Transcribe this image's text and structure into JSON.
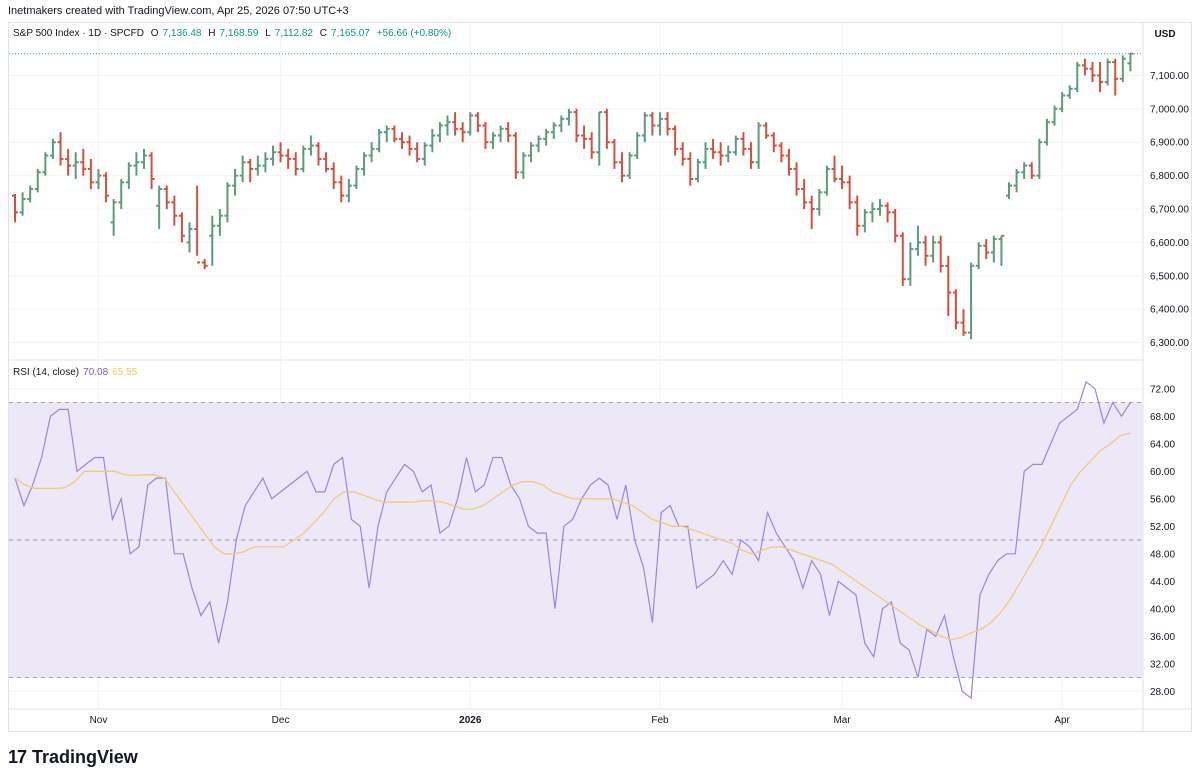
{
  "header": {
    "text": "Inetmakers created with TradingView.com, Apr 25, 2026 07:50 UTC+3"
  },
  "legend": {
    "symbol": "S&P 500 Index · 1D · SPCFD",
    "o_label": "O",
    "o_value": "7,136.48",
    "h_label": "H",
    "h_value": "7,168.59",
    "l_label": "L",
    "l_value": "7,112.82",
    "c_label": "C",
    "c_value": "7,165.07",
    "change": "+56.66 (+0.80%)"
  },
  "currency": "USD",
  "rsi_legend": {
    "name": "RSI (14, close)",
    "value": "70.08",
    "ma_value": "65.55"
  },
  "footer": {
    "logo_text": "TradingView",
    "logo_icon": "tradingview-logo-icon"
  },
  "colors": {
    "up": "#26a69a",
    "up_bar": "#5b9c7a",
    "down": "#d2513c",
    "rsi": "#9a86d6",
    "rsi_ma": "#f7c873",
    "band": "#ede8f8"
  },
  "chart_data": [
    {
      "type": "ohlc",
      "title": "S&P 500 Index · 1D · SPCFD",
      "ylim": [
        6260,
        7200
      ],
      "yticks": [
        "6,300.00",
        "6,400.00",
        "6,500.00",
        "6,600.00",
        "6,700.00",
        "6,800.00",
        "6,900.00",
        "7,000.00",
        "7,100.00"
      ],
      "ytick_values": [
        6300,
        6400,
        6500,
        6600,
        6700,
        6800,
        6900,
        7000,
        7100
      ],
      "xticks": [
        "Nov",
        "Dec",
        "2026",
        "Feb",
        "Mar",
        "Apr"
      ],
      "xtick_index": [
        11,
        35,
        60,
        85,
        109,
        138
      ],
      "bars": [
        [
          6740,
          6745,
          6660,
          6690
        ],
        [
          6690,
          6750,
          6680,
          6730
        ],
        [
          6730,
          6770,
          6720,
          6760
        ],
        [
          6760,
          6820,
          6750,
          6810
        ],
        [
          6810,
          6870,
          6800,
          6860
        ],
        [
          6860,
          6910,
          6850,
          6900
        ],
        [
          6900,
          6930,
          6830,
          6850
        ],
        [
          6850,
          6880,
          6800,
          6830
        ],
        [
          6830,
          6870,
          6790,
          6840
        ],
        [
          6840,
          6880,
          6800,
          6820
        ],
        [
          6820,
          6850,
          6760,
          6780
        ],
        [
          6780,
          6820,
          6760,
          6800
        ],
        [
          6800,
          6810,
          6720,
          6740
        ],
        [
          6660,
          6730,
          6620,
          6720
        ],
        [
          6720,
          6790,
          6700,
          6780
        ],
        [
          6780,
          6840,
          6760,
          6830
        ],
        [
          6830,
          6870,
          6800,
          6840
        ],
        [
          6840,
          6880,
          6820,
          6860
        ],
        [
          6860,
          6870,
          6760,
          6790
        ],
        [
          6710,
          6770,
          6640,
          6760
        ],
        [
          6760,
          6770,
          6700,
          6720
        ],
        [
          6720,
          6740,
          6650,
          6680
        ],
        [
          6680,
          6690,
          6600,
          6620
        ],
        [
          6600,
          6660,
          6570,
          6640
        ],
        [
          6640,
          6770,
          6560,
          6540
        ],
        [
          6540,
          6550,
          6520,
          6530
        ],
        [
          6620,
          6680,
          6530,
          6650
        ],
        [
          6650,
          6700,
          6620,
          6680
        ],
        [
          6680,
          6780,
          6660,
          6770
        ],
        [
          6770,
          6820,
          6740,
          6800
        ],
        [
          6800,
          6860,
          6780,
          6840
        ],
        [
          6840,
          6850,
          6780,
          6820
        ],
        [
          6820,
          6860,
          6800,
          6830
        ],
        [
          6830,
          6870,
          6810,
          6850
        ],
        [
          6850,
          6890,
          6830,
          6870
        ],
        [
          6870,
          6900,
          6840,
          6860
        ],
        [
          6860,
          6880,
          6820,
          6850
        ],
        [
          6850,
          6870,
          6800,
          6820
        ],
        [
          6820,
          6890,
          6810,
          6880
        ],
        [
          6880,
          6920,
          6860,
          6890
        ],
        [
          6890,
          6900,
          6830,
          6850
        ],
        [
          6850,
          6870,
          6810,
          6820
        ],
        [
          6820,
          6840,
          6760,
          6780
        ],
        [
          6780,
          6800,
          6720,
          6740
        ],
        [
          6740,
          6790,
          6720,
          6770
        ],
        [
          6770,
          6830,
          6760,
          6820
        ],
        [
          6820,
          6870,
          6800,
          6860
        ],
        [
          6860,
          6900,
          6840,
          6880
        ],
        [
          6880,
          6940,
          6870,
          6930
        ],
        [
          6930,
          6950,
          6900,
          6940
        ],
        [
          6940,
          6950,
          6900,
          6910
        ],
        [
          6910,
          6930,
          6880,
          6900
        ],
        [
          6900,
          6920,
          6860,
          6880
        ],
        [
          6880,
          6900,
          6840,
          6850
        ],
        [
          6850,
          6900,
          6830,
          6890
        ],
        [
          6890,
          6940,
          6870,
          6920
        ],
        [
          6920,
          6960,
          6900,
          6950
        ],
        [
          6950,
          6980,
          6920,
          6960
        ],
        [
          6960,
          6990,
          6920,
          6940
        ],
        [
          6940,
          6960,
          6900,
          6930
        ],
        [
          6930,
          6990,
          6920,
          6980
        ],
        [
          6980,
          6990,
          6930,
          6950
        ],
        [
          6950,
          6960,
          6880,
          6900
        ],
        [
          6900,
          6930,
          6880,
          6920
        ],
        [
          6920,
          6950,
          6900,
          6940
        ],
        [
          6940,
          6960,
          6900,
          6920
        ],
        [
          6920,
          6930,
          6790,
          6810
        ],
        [
          6810,
          6870,
          6790,
          6860
        ],
        [
          6860,
          6900,
          6840,
          6890
        ],
        [
          6890,
          6920,
          6870,
          6910
        ],
        [
          6910,
          6940,
          6890,
          6930
        ],
        [
          6930,
          6960,
          6910,
          6950
        ],
        [
          6950,
          6980,
          6930,
          6970
        ],
        [
          6970,
          7000,
          6950,
          6990
        ],
        [
          6990,
          7000,
          6900,
          6920
        ],
        [
          6920,
          6950,
          6880,
          6910
        ],
        [
          6910,
          6930,
          6850,
          6870
        ],
        [
          6870,
          6990,
          6830,
          6990
        ],
        [
          6990,
          7000,
          6880,
          6900
        ],
        [
          6900,
          6910,
          6820,
          6840
        ],
        [
          6840,
          6870,
          6780,
          6800
        ],
        [
          6800,
          6870,
          6790,
          6860
        ],
        [
          6860,
          6930,
          6850,
          6920
        ],
        [
          6920,
          6990,
          6900,
          6980
        ],
        [
          6980,
          6990,
          6920,
          6950
        ],
        [
          6950,
          6990,
          6920,
          6970
        ],
        [
          6970,
          6990,
          6920,
          6940
        ],
        [
          6940,
          6950,
          6860,
          6880
        ],
        [
          6880,
          6900,
          6830,
          6850
        ],
        [
          6850,
          6870,
          6770,
          6790
        ],
        [
          6790,
          6850,
          6780,
          6840
        ],
        [
          6840,
          6900,
          6820,
          6880
        ],
        [
          6880,
          6910,
          6850,
          6870
        ],
        [
          6870,
          6900,
          6830,
          6860
        ],
        [
          6860,
          6890,
          6840,
          6870
        ],
        [
          6870,
          6920,
          6860,
          6910
        ],
        [
          6910,
          6930,
          6860,
          6880
        ],
        [
          6880,
          6900,
          6820,
          6840
        ],
        [
          6840,
          6960,
          6820,
          6950
        ],
        [
          6950,
          6960,
          6910,
          6920
        ],
        [
          6920,
          6930,
          6870,
          6890
        ],
        [
          6890,
          6900,
          6840,
          6860
        ],
        [
          6860,
          6880,
          6800,
          6820
        ],
        [
          6820,
          6840,
          6740,
          6760
        ],
        [
          6760,
          6790,
          6700,
          6720
        ],
        [
          6720,
          6740,
          6640,
          6700
        ],
        [
          6700,
          6760,
          6680,
          6750
        ],
        [
          6750,
          6830,
          6740,
          6820
        ],
        [
          6820,
          6860,
          6780,
          6790
        ],
        [
          6790,
          6830,
          6760,
          6780
        ],
        [
          6780,
          6800,
          6700,
          6720
        ],
        [
          6720,
          6740,
          6620,
          6650
        ],
        [
          6650,
          6700,
          6630,
          6690
        ],
        [
          6690,
          6720,
          6660,
          6700
        ],
        [
          6700,
          6730,
          6680,
          6710
        ],
        [
          6710,
          6720,
          6660,
          6690
        ],
        [
          6690,
          6700,
          6600,
          6620
        ],
        [
          6620,
          6630,
          6470,
          6490
        ],
        [
          6490,
          6600,
          6470,
          6580
        ],
        [
          6580,
          6650,
          6560,
          6600
        ],
        [
          6600,
          6620,
          6530,
          6560
        ],
        [
          6560,
          6620,
          6540,
          6600
        ],
        [
          6600,
          6620,
          6510,
          6530
        ],
        [
          6530,
          6560,
          6380,
          6450
        ],
        [
          6450,
          6460,
          6340,
          6360
        ],
        [
          6360,
          6400,
          6320,
          6330
        ],
        [
          6330,
          6540,
          6310,
          6530
        ],
        [
          6530,
          6600,
          6520,
          6590
        ],
        [
          6590,
          6610,
          6550,
          6570
        ],
        [
          6570,
          6620,
          6540,
          6610
        ],
        [
          6610,
          6620,
          6530,
          6620
        ],
        [
          6740,
          6780,
          6730,
          6770
        ],
        [
          6770,
          6820,
          6750,
          6810
        ],
        [
          6810,
          6840,
          6790,
          6830
        ],
        [
          6830,
          6840,
          6790,
          6800
        ],
        [
          6800,
          6910,
          6790,
          6900
        ],
        [
          6900,
          6970,
          6890,
          6960
        ],
        [
          6960,
          7010,
          6950,
          7000
        ],
        [
          7000,
          7050,
          6990,
          7040
        ],
        [
          7040,
          7070,
          7030,
          7060
        ],
        [
          7060,
          7140,
          7050,
          7130
        ],
        [
          7130,
          7150,
          7100,
          7120
        ],
        [
          7120,
          7140,
          7080,
          7100
        ],
        [
          7100,
          7140,
          7050,
          7080
        ],
        [
          7080,
          7150,
          7070,
          7140
        ],
        [
          7140,
          7150,
          7040,
          7090
        ],
        [
          7090,
          7160,
          7080,
          7150
        ],
        [
          7136,
          7168,
          7112,
          7165
        ]
      ]
    },
    {
      "type": "line",
      "title": "RSI (14, close)",
      "ylim": [
        26,
        74
      ],
      "yticks": [
        "28.00",
        "32.00",
        "36.00",
        "40.00",
        "44.00",
        "48.00",
        "52.00",
        "56.00",
        "60.00",
        "64.00",
        "68.00",
        "72.00"
      ],
      "ytick_values": [
        28,
        32,
        36,
        40,
        44,
        48,
        52,
        56,
        60,
        64,
        68,
        72
      ],
      "bands": {
        "upper": 70,
        "middle": 50,
        "lower": 30
      },
      "series": [
        {
          "values": [
            59,
            55,
            58,
            62,
            68,
            69,
            69,
            60,
            61,
            62,
            62,
            53,
            56,
            48,
            49,
            58,
            59,
            59,
            48,
            48,
            43,
            39,
            41,
            35,
            41,
            50,
            55,
            57,
            59,
            56,
            57,
            58,
            59,
            60,
            57,
            57,
            61,
            62,
            53,
            52,
            43,
            52,
            57,
            59,
            61,
            60,
            57,
            58,
            51,
            52,
            56,
            62,
            57,
            58,
            62,
            62,
            58,
            56,
            52,
            51,
            51,
            40,
            52,
            53,
            56,
            58,
            59,
            58,
            53,
            58,
            50,
            46,
            38,
            54,
            55,
            52,
            52,
            43,
            44,
            45,
            47,
            45,
            50,
            49,
            47,
            54,
            51,
            49,
            47,
            43,
            47,
            45,
            39,
            44,
            43,
            42,
            35,
            33,
            40,
            41,
            35,
            34,
            30,
            37,
            36,
            39,
            33,
            28,
            27,
            42,
            45,
            47,
            48,
            48,
            60,
            61,
            61,
            64,
            67,
            68,
            69,
            73,
            72,
            67,
            70,
            68,
            70
          ],
          "color": "#9a86d6"
        },
        {
          "values": [
            59,
            58,
            57.5,
            57.5,
            57.5,
            57.6,
            58.5,
            60,
            60,
            60,
            60,
            59.5,
            59.4,
            59.5,
            59.5,
            59,
            57,
            55,
            53,
            51,
            49,
            48,
            48,
            48.3,
            49,
            49,
            49,
            49,
            50,
            51,
            52.5,
            54,
            56,
            57,
            57,
            56.5,
            56,
            55.5,
            55.5,
            55.5,
            55.5,
            55.7,
            55.7,
            55.5,
            55,
            54.5,
            54.5,
            55,
            56,
            57,
            58,
            58.5,
            58.5,
            58,
            57,
            56.5,
            56,
            56,
            56,
            56,
            56,
            55.5,
            55,
            54,
            53,
            52.5,
            52,
            52,
            51.5,
            51,
            50.5,
            50,
            49.5,
            48.5,
            48,
            48.5,
            49,
            49,
            48.5,
            48,
            47.5,
            47,
            46.5,
            45.5,
            44.5,
            43.5,
            42.5,
            41.5,
            40.5,
            39.5,
            38.5,
            37.5,
            36.8,
            36,
            35.5,
            35.8,
            36.5,
            37,
            38,
            39.5,
            41.5,
            44,
            46.5,
            49,
            52,
            55,
            58,
            60,
            61.5,
            63,
            64,
            65.2,
            65.55
          ],
          "color": "#f7c873"
        }
      ]
    }
  ]
}
